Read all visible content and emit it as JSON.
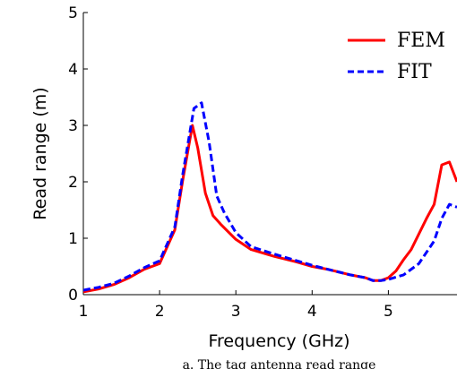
{
  "chart_data": {
    "type": "line",
    "xlabel": "Frequency (GHz)",
    "ylabel": "Read range (m)",
    "xlim": [
      1,
      5.9
    ],
    "ylim": [
      0,
      5
    ],
    "xticks": [
      "1",
      "2",
      "3",
      "4",
      "5"
    ],
    "yticks": [
      "0",
      "1",
      "2",
      "3",
      "4",
      "5"
    ],
    "grid": false,
    "legend_position": "top-right",
    "caption": "a. The tag antenna read range",
    "series": [
      {
        "name": "FEM",
        "color": "#ff0000",
        "style": "solid",
        "x": [
          1.0,
          1.2,
          1.4,
          1.6,
          1.8,
          2.0,
          2.2,
          2.3,
          2.43,
          2.5,
          2.6,
          2.7,
          2.8,
          3.0,
          3.2,
          3.5,
          3.8,
          4.0,
          4.2,
          4.5,
          4.7,
          4.8,
          4.9,
          5.0,
          5.1,
          5.2,
          5.3,
          5.5,
          5.6,
          5.7,
          5.8,
          5.9
        ],
        "y": [
          0.05,
          0.1,
          0.18,
          0.3,
          0.45,
          0.55,
          1.15,
          2.0,
          3.0,
          2.6,
          1.8,
          1.4,
          1.25,
          0.98,
          0.8,
          0.68,
          0.58,
          0.5,
          0.45,
          0.35,
          0.3,
          0.25,
          0.25,
          0.3,
          0.42,
          0.62,
          0.8,
          1.35,
          1.6,
          2.3,
          2.35,
          2.0
        ]
      },
      {
        "name": "FIT",
        "color": "#0000ff",
        "style": "dashed",
        "x": [
          1.0,
          1.2,
          1.4,
          1.6,
          1.8,
          2.0,
          2.2,
          2.3,
          2.45,
          2.55,
          2.65,
          2.75,
          2.85,
          3.0,
          3.2,
          3.5,
          3.8,
          4.0,
          4.2,
          4.5,
          4.7,
          4.8,
          4.9,
          5.0,
          5.2,
          5.4,
          5.6,
          5.7,
          5.8,
          5.9
        ],
        "y": [
          0.08,
          0.13,
          0.2,
          0.33,
          0.48,
          0.6,
          1.2,
          2.1,
          3.3,
          3.4,
          2.7,
          1.75,
          1.45,
          1.1,
          0.85,
          0.72,
          0.6,
          0.52,
          0.45,
          0.35,
          0.3,
          0.25,
          0.25,
          0.27,
          0.35,
          0.55,
          0.95,
          1.35,
          1.6,
          1.55
        ]
      }
    ]
  }
}
